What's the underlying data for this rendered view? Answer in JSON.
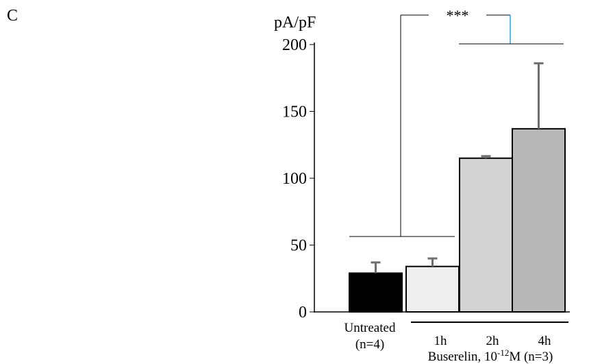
{
  "panel_label": "C",
  "chart_data": {
    "type": "bar",
    "ylabel": "pA/pF",
    "ylim": [
      0,
      200
    ],
    "yticks": [
      0,
      50,
      100,
      150,
      200
    ],
    "categories": [
      "Untreated",
      "1h",
      "2h",
      "4h"
    ],
    "untreated_label": [
      "Untreated",
      "(n=4)"
    ],
    "values": [
      29,
      34,
      115,
      137
    ],
    "errors": [
      8,
      6,
      1.5,
      49
    ],
    "bar_colors": [
      "#000000",
      "#efefef",
      "#d3d3d3",
      "#b8b8b8"
    ],
    "group_label": {
      "prefix": "Buserelin, 10",
      "superscript": "-12",
      "suffix": "M (n=3)"
    },
    "significance": "***"
  }
}
